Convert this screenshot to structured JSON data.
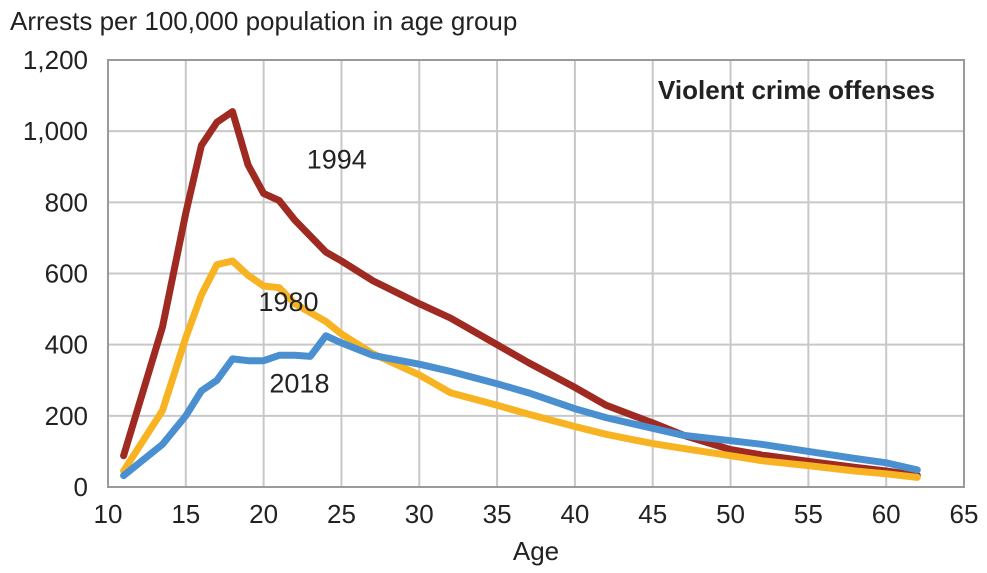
{
  "chart_data": {
    "type": "line",
    "title": "Violent crime offenses",
    "ylabel": "Arrests per 100,000 population in age group",
    "xlabel": "Age",
    "xlim": [
      10,
      65
    ],
    "ylim": [
      0,
      1200
    ],
    "x_ticks": [
      10,
      15,
      20,
      25,
      30,
      35,
      40,
      45,
      50,
      55,
      60,
      65
    ],
    "y_ticks": [
      0,
      200,
      400,
      600,
      800,
      1000,
      1200
    ],
    "x_tick_labels": [
      "10",
      "15",
      "20",
      "25",
      "30",
      "35",
      "40",
      "45",
      "50",
      "55",
      "60",
      "65"
    ],
    "y_tick_labels": [
      "0",
      "200",
      "400",
      "600",
      "800",
      "1,000",
      "1,200"
    ],
    "grid": true,
    "series": [
      {
        "name": "1994",
        "color": "#9e2a22",
        "points": [
          [
            11,
            88
          ],
          [
            13.5,
            450
          ],
          [
            15,
            770
          ],
          [
            16,
            960
          ],
          [
            17,
            1025
          ],
          [
            18,
            1055
          ],
          [
            19,
            905
          ],
          [
            20,
            825
          ],
          [
            21,
            805
          ],
          [
            22,
            750
          ],
          [
            24,
            660
          ],
          [
            25,
            635
          ],
          [
            27,
            580
          ],
          [
            30,
            515
          ],
          [
            32,
            475
          ],
          [
            35,
            400
          ],
          [
            37,
            350
          ],
          [
            40,
            280
          ],
          [
            42,
            230
          ],
          [
            45,
            180
          ],
          [
            47,
            145
          ],
          [
            50,
            105
          ],
          [
            52,
            90
          ],
          [
            55,
            72
          ],
          [
            58,
            55
          ],
          [
            60,
            45
          ],
          [
            62,
            33
          ]
        ]
      },
      {
        "name": "1980",
        "color": "#f8b323",
        "points": [
          [
            11,
            45
          ],
          [
            13.5,
            215
          ],
          [
            15,
            420
          ],
          [
            16,
            540
          ],
          [
            17,
            625
          ],
          [
            18,
            635
          ],
          [
            19,
            595
          ],
          [
            20,
            565
          ],
          [
            21,
            560
          ],
          [
            22,
            515
          ],
          [
            24,
            465
          ],
          [
            25,
            430
          ],
          [
            27,
            375
          ],
          [
            30,
            315
          ],
          [
            32,
            265
          ],
          [
            35,
            230
          ],
          [
            37,
            205
          ],
          [
            40,
            170
          ],
          [
            42,
            148
          ],
          [
            45,
            122
          ],
          [
            47,
            108
          ],
          [
            50,
            88
          ],
          [
            52,
            74
          ],
          [
            55,
            60
          ],
          [
            58,
            45
          ],
          [
            60,
            37
          ],
          [
            62,
            27
          ]
        ]
      },
      {
        "name": "2018",
        "color": "#4a90d0",
        "points": [
          [
            11,
            32
          ],
          [
            13.5,
            120
          ],
          [
            15,
            200
          ],
          [
            16,
            270
          ],
          [
            17,
            300
          ],
          [
            18,
            360
          ],
          [
            19,
            355
          ],
          [
            20,
            355
          ],
          [
            21,
            370
          ],
          [
            22,
            370
          ],
          [
            23,
            367
          ],
          [
            24,
            425
          ],
          [
            25,
            405
          ],
          [
            27,
            370
          ],
          [
            30,
            345
          ],
          [
            32,
            325
          ],
          [
            35,
            290
          ],
          [
            37,
            265
          ],
          [
            40,
            220
          ],
          [
            42,
            195
          ],
          [
            45,
            165
          ],
          [
            47,
            145
          ],
          [
            50,
            130
          ],
          [
            52,
            120
          ],
          [
            55,
            100
          ],
          [
            58,
            80
          ],
          [
            60,
            68
          ],
          [
            62,
            48
          ]
        ]
      }
    ],
    "series_labels": [
      {
        "text": "1994",
        "x": 24.7,
        "y": 895
      },
      {
        "text": "1980",
        "x": 21.6,
        "y": 495
      },
      {
        "text": "2018",
        "x": 22.3,
        "y": 265
      }
    ]
  }
}
